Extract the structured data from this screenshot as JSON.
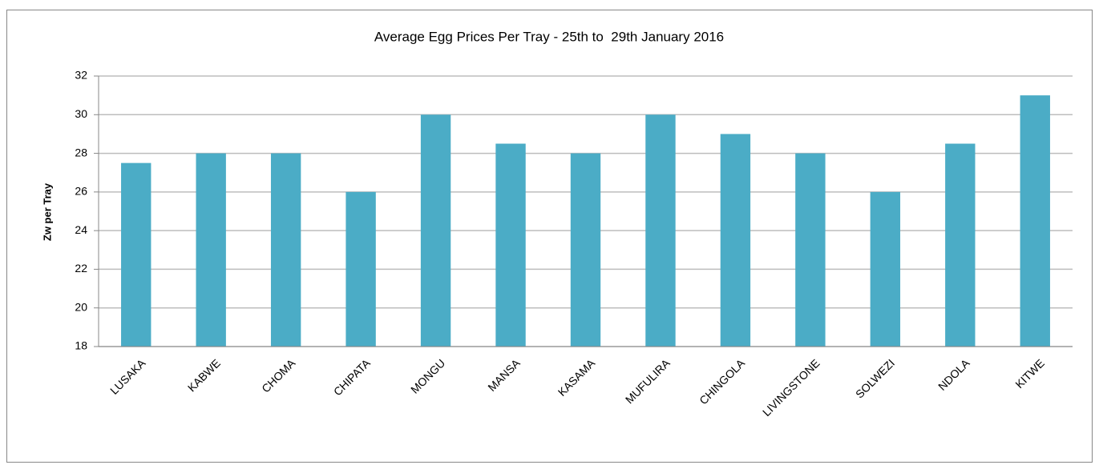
{
  "chart_data": {
    "type": "bar",
    "title": "Average Egg Prices Per Tray - 25th to  29th January 2016",
    "y_label": "Zw per Tray",
    "categories": [
      "LUSAKA",
      "KABWE",
      "CHOMA",
      "CHIPATA",
      "MONGU",
      "MANSA",
      "KASAMA",
      "MUFULIRA",
      "CHINGOLA",
      "LIVINGSTONE",
      "SOLWEZI",
      "NDOLA",
      "KITWE"
    ],
    "values": [
      27.5,
      28,
      28,
      26,
      30,
      28.5,
      28,
      30,
      29,
      28,
      26,
      28.5,
      31
    ],
    "color": "#4bacc6",
    "ylim": [
      18,
      32
    ],
    "yticks": [
      18,
      20,
      22,
      24,
      26,
      28,
      30,
      32
    ],
    "grid": true
  }
}
